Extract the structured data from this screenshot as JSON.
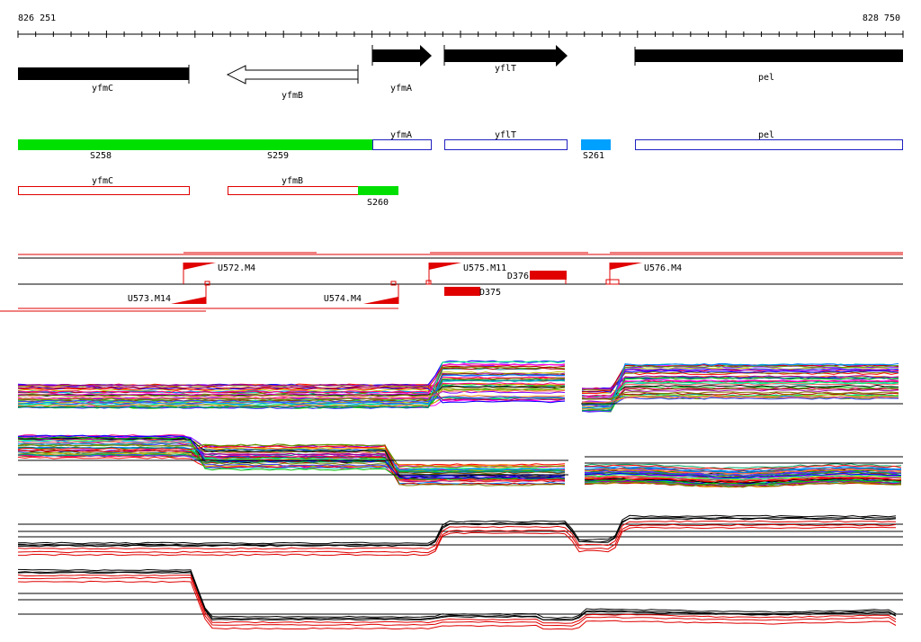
{
  "coords": {
    "start": "826 251",
    "end": "828 750"
  },
  "genes_top": [
    {
      "name": "yfmC",
      "strand": "-",
      "style": "solid"
    },
    {
      "name": "yfmB",
      "strand": "-",
      "style": "outline"
    },
    {
      "name": "yfmA",
      "strand": "+",
      "style": "solid"
    },
    {
      "name": "yflT",
      "strand": "+",
      "style": "solid"
    },
    {
      "name": "pel",
      "strand": "+",
      "style": "solid"
    }
  ],
  "segments_plus": [
    {
      "label": "S258",
      "color": "#00e000"
    },
    {
      "label": "S259",
      "color": "#00e000"
    },
    {
      "label": "S261",
      "color": "#00a0ff"
    }
  ],
  "gene_boxes_plus": [
    {
      "name": "yfmA"
    },
    {
      "name": "yflT"
    },
    {
      "name": "pel"
    }
  ],
  "gene_boxes_minus": [
    {
      "name": "yfmC"
    },
    {
      "name": "yfmB"
    }
  ],
  "segments_minus": [
    {
      "label": "S260",
      "color": "#00e000"
    }
  ],
  "features": {
    "upstream": [
      {
        "label": "U572.M4"
      },
      {
        "label": "U573.M14"
      },
      {
        "label": "U574.M4"
      },
      {
        "label": "U575.M11"
      },
      {
        "label": "U576.M4"
      }
    ],
    "downstream": [
      {
        "label": "D376"
      },
      {
        "label": "D375"
      }
    ]
  },
  "colors": {
    "gene_fill": "#000000",
    "box_plus": "#2020c0",
    "box_minus": "#e00000",
    "feature": "#e00000",
    "segment_green": "#00e000",
    "segment_blue": "#00a0ff"
  },
  "panels": [
    {
      "kind": "multi-color expression profiles",
      "strand": "+"
    },
    {
      "kind": "multi-color expression profiles",
      "strand": "-"
    },
    {
      "kind": "black/red profile summary",
      "strand": "+"
    },
    {
      "kind": "black/red profile summary",
      "strand": "-"
    }
  ]
}
